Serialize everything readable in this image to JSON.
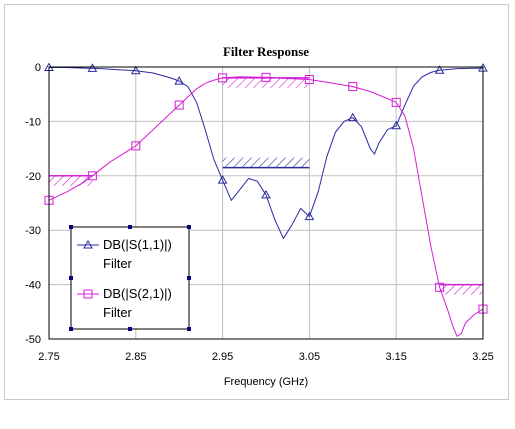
{
  "chart_data": {
    "type": "line",
    "title": "Filter Response",
    "xlabel": "Frequency (GHz)",
    "ylabel": "",
    "xlim": [
      2.75,
      3.25
    ],
    "ylim": [
      -50,
      0
    ],
    "x_ticks": [
      "2.75",
      "2.85",
      "2.95",
      "3.05",
      "3.15",
      "3.25"
    ],
    "y_ticks": [
      "0",
      "-10",
      "-20",
      "-30",
      "-40",
      "-50"
    ],
    "x_tick_values": [
      2.75,
      2.85,
      2.95,
      3.05,
      3.15,
      3.25
    ],
    "y_tick_values": [
      0,
      -10,
      -20,
      -30,
      -40,
      -50
    ],
    "grid": true,
    "legend_position": "bottom-left",
    "series": [
      {
        "name": "DB(|S(1,1)|)",
        "sub": "Filter",
        "color": "#2a2aa0",
        "marker": "triangle",
        "points": [
          [
            2.75,
            -0.1
          ],
          [
            2.77,
            -0.1
          ],
          [
            2.79,
            -0.2
          ],
          [
            2.81,
            -0.3
          ],
          [
            2.83,
            -0.5
          ],
          [
            2.85,
            -0.7
          ],
          [
            2.87,
            -1.1
          ],
          [
            2.89,
            -2.0
          ],
          [
            2.9,
            -2.6
          ],
          [
            2.91,
            -3.6
          ],
          [
            2.92,
            -6.5
          ],
          [
            2.93,
            -11.5
          ],
          [
            2.94,
            -17
          ],
          [
            2.95,
            -20.8
          ],
          [
            2.96,
            -24.5
          ],
          [
            2.97,
            -22.5
          ],
          [
            2.98,
            -20.5
          ],
          [
            2.99,
            -21
          ],
          [
            3.0,
            -23.5
          ],
          [
            3.01,
            -28
          ],
          [
            3.02,
            -31.5
          ],
          [
            3.03,
            -29
          ],
          [
            3.04,
            -26
          ],
          [
            3.05,
            -27.5
          ],
          [
            3.06,
            -23
          ],
          [
            3.07,
            -16.5
          ],
          [
            3.08,
            -12
          ],
          [
            3.09,
            -10
          ],
          [
            3.1,
            -9.3
          ],
          [
            3.11,
            -11
          ],
          [
            3.12,
            -15
          ],
          [
            3.125,
            -16
          ],
          [
            3.13,
            -14
          ],
          [
            3.14,
            -11.5
          ],
          [
            3.15,
            -10.8
          ],
          [
            3.16,
            -7
          ],
          [
            3.17,
            -3.5
          ],
          [
            3.18,
            -1.8
          ],
          [
            3.19,
            -1.0
          ],
          [
            3.2,
            -0.6
          ],
          [
            3.22,
            -0.3
          ],
          [
            3.25,
            -0.2
          ]
        ],
        "marker_x": [
          2.75,
          2.8,
          2.85,
          2.9,
          2.95,
          3.0,
          3.05,
          3.1,
          3.15,
          3.2,
          3.25
        ]
      },
      {
        "name": "DB(|S(2,1)|)",
        "sub": "Filter",
        "color": "#d41fd4",
        "marker": "square",
        "points": [
          [
            2.75,
            -24.5
          ],
          [
            2.77,
            -23
          ],
          [
            2.79,
            -21.2
          ],
          [
            2.8,
            -20
          ],
          [
            2.82,
            -17.5
          ],
          [
            2.84,
            -15.5
          ],
          [
            2.85,
            -14.5
          ],
          [
            2.87,
            -11.5
          ],
          [
            2.89,
            -8.5
          ],
          [
            2.9,
            -7
          ],
          [
            2.91,
            -5.5
          ],
          [
            2.92,
            -4
          ],
          [
            2.93,
            -3
          ],
          [
            2.94,
            -2.4
          ],
          [
            2.95,
            -2.0
          ],
          [
            2.97,
            -1.8
          ],
          [
            3.0,
            -1.9
          ],
          [
            3.02,
            -2.1
          ],
          [
            3.05,
            -2.3
          ],
          [
            3.07,
            -2.8
          ],
          [
            3.1,
            -3.6
          ],
          [
            3.12,
            -4.5
          ],
          [
            3.14,
            -5.8
          ],
          [
            3.15,
            -6.5
          ],
          [
            3.16,
            -9
          ],
          [
            3.17,
            -15
          ],
          [
            3.18,
            -24
          ],
          [
            3.19,
            -33
          ],
          [
            3.2,
            -40.5
          ],
          [
            3.21,
            -45
          ],
          [
            3.215,
            -47.5
          ],
          [
            3.22,
            -49.5
          ],
          [
            3.225,
            -49
          ],
          [
            3.23,
            -47
          ],
          [
            3.24,
            -45.5
          ],
          [
            3.25,
            -44.5
          ]
        ],
        "marker_x": [
          2.75,
          2.8,
          2.85,
          2.9,
          2.95,
          3.0,
          3.05,
          3.1,
          3.15,
          3.2,
          3.25
        ]
      }
    ],
    "spec_masks": [
      {
        "x1": 2.75,
        "x2": 2.8,
        "y": -20,
        "color": "#d41fd4"
      },
      {
        "x1": 2.95,
        "x2": 3.05,
        "y": -2,
        "color": "#d41fd4"
      },
      {
        "x1": 2.95,
        "x2": 3.05,
        "y": -18.5,
        "color": "#2a2aa0"
      },
      {
        "x1": 3.2,
        "x2": 3.25,
        "y": -40,
        "color": "#d41fd4"
      }
    ]
  }
}
